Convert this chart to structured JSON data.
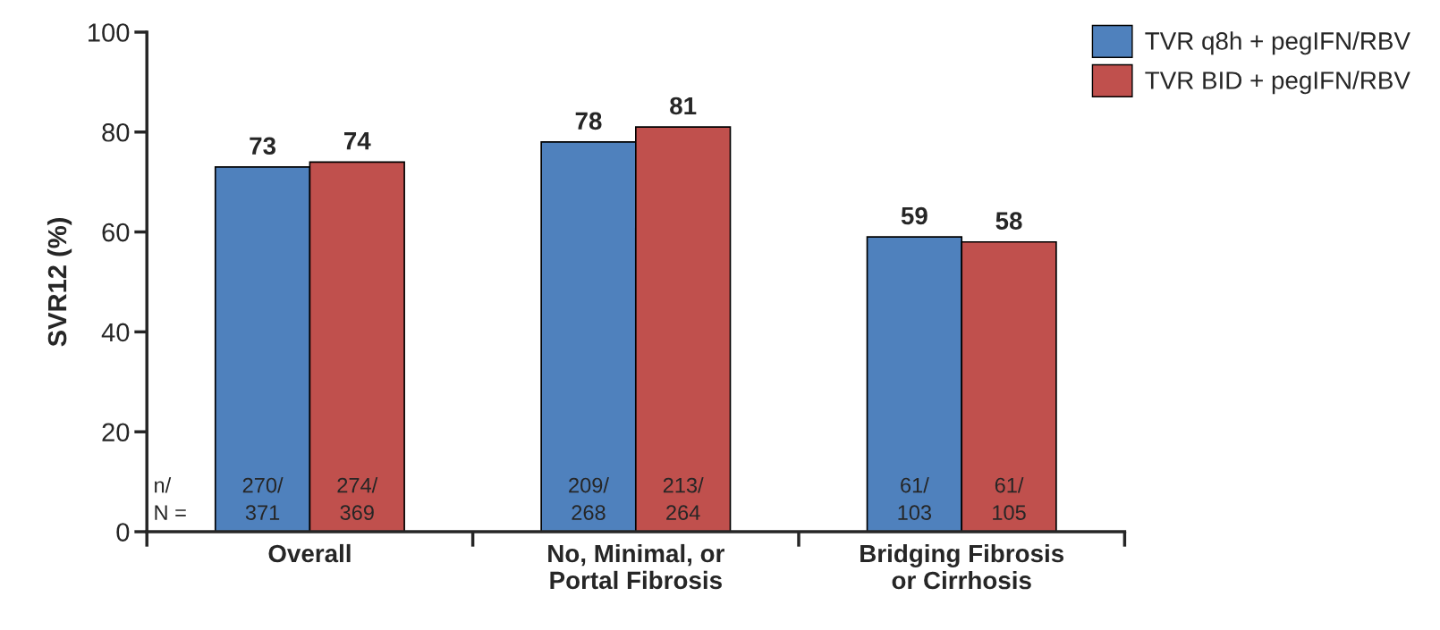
{
  "chart_data": {
    "type": "bar",
    "categories": [
      "Overall",
      "No, Minimal, or\nPortal Fibrosis",
      "Bridging Fibrosis\nor Cirrhosis"
    ],
    "series": [
      {
        "name": "TVR q8h + pegIFN/RBV",
        "color": "#4f81bd",
        "values": [
          73,
          78,
          59
        ]
      },
      {
        "name": "TVR BID + pegIFN/RBV",
        "color": "#c0504d",
        "values": [
          74,
          81,
          58
        ]
      }
    ],
    "ylabel": "SVR12 (%)",
    "ylim": [
      0,
      100
    ],
    "yticks": [
      0,
      20,
      40,
      60,
      80,
      100
    ],
    "data_labels": true,
    "annotations": [
      "n/\nN =",
      "270/\n371",
      "274/\n369",
      "209/\n268",
      "213/\n264",
      "61/\n103",
      "61/\n105"
    ],
    "grid": false,
    "legend": "top right"
  }
}
